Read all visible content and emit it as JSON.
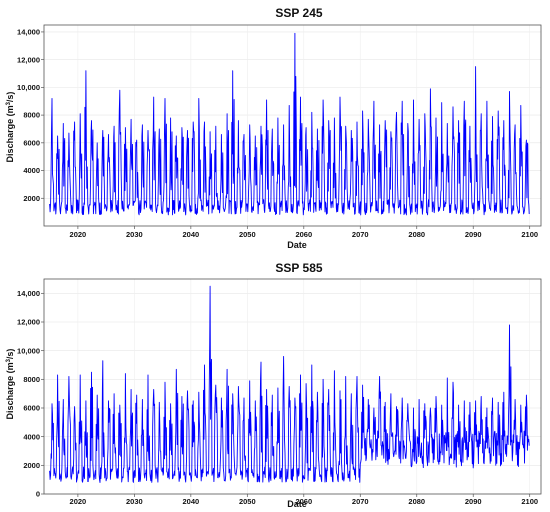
{
  "chart_data": [
    {
      "type": "line",
      "title": "SSP 245",
      "xlabel": "Date",
      "ylabel_prefix": "Discharge (m",
      "ylabel_sup": "3",
      "ylabel_suffix": "/s)",
      "xlim": [
        2014,
        2102
      ],
      "ylim": [
        0,
        14500
      ],
      "xticks": [
        2020,
        2030,
        2040,
        2050,
        2060,
        2070,
        2080,
        2090,
        2100
      ],
      "xtick_labels": [
        "2020",
        "2030",
        "2040",
        "2050",
        "2060",
        "2070",
        "2080",
        "2090",
        "2100"
      ],
      "yticks": [
        2000,
        4000,
        6000,
        8000,
        10000,
        12000,
        14000
      ],
      "ytick_labels": [
        "2000",
        "4000",
        "6000",
        "8000",
        "10,000",
        "12,000",
        "14,000"
      ],
      "grid": true,
      "line_color": "#0000ff",
      "annual_peaks": [
        {
          "x": 2015.4,
          "y": 9200
        },
        {
          "x": 2016.4,
          "y": 6500
        },
        {
          "x": 2017.4,
          "y": 7400
        },
        {
          "x": 2018.4,
          "y": 6700
        },
        {
          "x": 2019.4,
          "y": 7500
        },
        {
          "x": 2020.4,
          "y": 8100
        },
        {
          "x": 2021.4,
          "y": 11200
        },
        {
          "x": 2022.4,
          "y": 7600
        },
        {
          "x": 2023.4,
          "y": 6000
        },
        {
          "x": 2024.4,
          "y": 6900
        },
        {
          "x": 2025.4,
          "y": 6600
        },
        {
          "x": 2026.4,
          "y": 7200
        },
        {
          "x": 2027.4,
          "y": 9800
        },
        {
          "x": 2028.4,
          "y": 7100
        },
        {
          "x": 2029.4,
          "y": 7700
        },
        {
          "x": 2030.4,
          "y": 6200
        },
        {
          "x": 2031.4,
          "y": 7300
        },
        {
          "x": 2032.4,
          "y": 6900
        },
        {
          "x": 2033.4,
          "y": 9300
        },
        {
          "x": 2034.4,
          "y": 7000
        },
        {
          "x": 2035.4,
          "y": 9200
        },
        {
          "x": 2036.4,
          "y": 7800
        },
        {
          "x": 2037.4,
          "y": 6500
        },
        {
          "x": 2038.4,
          "y": 7100
        },
        {
          "x": 2039.4,
          "y": 6900
        },
        {
          "x": 2040.4,
          "y": 7500
        },
        {
          "x": 2041.4,
          "y": 9200
        },
        {
          "x": 2042.4,
          "y": 7500
        },
        {
          "x": 2043.4,
          "y": 6800
        },
        {
          "x": 2044.4,
          "y": 7200
        },
        {
          "x": 2045.4,
          "y": 6600
        },
        {
          "x": 2046.4,
          "y": 8100
        },
        {
          "x": 2047.4,
          "y": 11200
        },
        {
          "x": 2048.4,
          "y": 7600
        },
        {
          "x": 2049.4,
          "y": 6600
        },
        {
          "x": 2050.4,
          "y": 7300
        },
        {
          "x": 2051.4,
          "y": 6500
        },
        {
          "x": 2052.4,
          "y": 7200
        },
        {
          "x": 2053.4,
          "y": 9100
        },
        {
          "x": 2054.4,
          "y": 7000
        },
        {
          "x": 2055.4,
          "y": 7800
        },
        {
          "x": 2056.4,
          "y": 7300
        },
        {
          "x": 2057.4,
          "y": 8700
        },
        {
          "x": 2058.4,
          "y": 13900
        },
        {
          "x": 2059.4,
          "y": 9300
        },
        {
          "x": 2060.4,
          "y": 7100
        },
        {
          "x": 2061.4,
          "y": 8200
        },
        {
          "x": 2062.4,
          "y": 7000
        },
        {
          "x": 2063.4,
          "y": 9100
        },
        {
          "x": 2064.4,
          "y": 7600
        },
        {
          "x": 2065.4,
          "y": 7800
        },
        {
          "x": 2066.4,
          "y": 9300
        },
        {
          "x": 2067.4,
          "y": 7200
        },
        {
          "x": 2068.4,
          "y": 6900
        },
        {
          "x": 2069.4,
          "y": 7500
        },
        {
          "x": 2070.4,
          "y": 8300
        },
        {
          "x": 2071.4,
          "y": 7700
        },
        {
          "x": 2072.4,
          "y": 9000
        },
        {
          "x": 2073.4,
          "y": 7300
        },
        {
          "x": 2074.4,
          "y": 7600
        },
        {
          "x": 2075.4,
          "y": 6800
        },
        {
          "x": 2076.4,
          "y": 8200
        },
        {
          "x": 2077.4,
          "y": 9000
        },
        {
          "x": 2078.4,
          "y": 7400
        },
        {
          "x": 2079.4,
          "y": 9100
        },
        {
          "x": 2080.4,
          "y": 7700
        },
        {
          "x": 2081.4,
          "y": 8100
        },
        {
          "x": 2082.4,
          "y": 9900
        },
        {
          "x": 2083.4,
          "y": 7800
        },
        {
          "x": 2084.4,
          "y": 8900
        },
        {
          "x": 2085.4,
          "y": 7400
        },
        {
          "x": 2086.4,
          "y": 8600
        },
        {
          "x": 2087.4,
          "y": 7600
        },
        {
          "x": 2088.4,
          "y": 9000
        },
        {
          "x": 2089.4,
          "y": 7200
        },
        {
          "x": 2090.4,
          "y": 11500
        },
        {
          "x": 2091.4,
          "y": 8100
        },
        {
          "x": 2092.4,
          "y": 9000
        },
        {
          "x": 2093.4,
          "y": 7900
        },
        {
          "x": 2094.4,
          "y": 8300
        },
        {
          "x": 2095.4,
          "y": 7600
        },
        {
          "x": 2096.4,
          "y": 9700
        },
        {
          "x": 2097.4,
          "y": 7300
        },
        {
          "x": 2098.4,
          "y": 8700
        },
        {
          "x": 2099.4,
          "y": 6200
        }
      ],
      "baseflow_min": 800,
      "baseflow_typical": 1500
    },
    {
      "type": "line",
      "title": "SSP 585",
      "xlabel": "Date",
      "ylabel_prefix": "Discharge (m",
      "ylabel_sup": "3",
      "ylabel_suffix": "/s)",
      "xlim": [
        2014,
        2102
      ],
      "ylim": [
        0,
        15000
      ],
      "xticks": [
        2020,
        2030,
        2040,
        2050,
        2060,
        2070,
        2080,
        2090,
        2100
      ],
      "xtick_labels": [
        "2020",
        "2030",
        "2040",
        "2050",
        "2060",
        "2070",
        "2080",
        "2090",
        "2100"
      ],
      "yticks": [
        0,
        2000,
        4000,
        6000,
        8000,
        10000,
        12000,
        14000
      ],
      "ytick_labels": [
        "0",
        "2000",
        "4000",
        "6000",
        "8000",
        "10,000",
        "12,000",
        "14,000"
      ],
      "grid": true,
      "line_color": "#0000ff",
      "annual_peaks": [
        {
          "x": 2015.4,
          "y": 6300
        },
        {
          "x": 2016.4,
          "y": 8300
        },
        {
          "x": 2017.4,
          "y": 6600
        },
        {
          "x": 2018.4,
          "y": 8200
        },
        {
          "x": 2019.4,
          "y": 6100
        },
        {
          "x": 2020.4,
          "y": 8300
        },
        {
          "x": 2021.4,
          "y": 6500
        },
        {
          "x": 2022.4,
          "y": 8500
        },
        {
          "x": 2023.4,
          "y": 6900
        },
        {
          "x": 2024.4,
          "y": 9300
        },
        {
          "x": 2025.4,
          "y": 6500
        },
        {
          "x": 2026.4,
          "y": 7000
        },
        {
          "x": 2027.4,
          "y": 6200
        },
        {
          "x": 2028.4,
          "y": 8400
        },
        {
          "x": 2029.4,
          "y": 7300
        },
        {
          "x": 2030.4,
          "y": 6900
        },
        {
          "x": 2031.4,
          "y": 6600
        },
        {
          "x": 2032.4,
          "y": 8300
        },
        {
          "x": 2033.4,
          "y": 7300
        },
        {
          "x": 2034.4,
          "y": 6400
        },
        {
          "x": 2035.4,
          "y": 7800
        },
        {
          "x": 2036.4,
          "y": 6300
        },
        {
          "x": 2037.4,
          "y": 8700
        },
        {
          "x": 2038.4,
          "y": 6800
        },
        {
          "x": 2039.4,
          "y": 7200
        },
        {
          "x": 2040.4,
          "y": 6500
        },
        {
          "x": 2041.4,
          "y": 7100
        },
        {
          "x": 2042.4,
          "y": 9000
        },
        {
          "x": 2043.4,
          "y": 14500
        },
        {
          "x": 2044.4,
          "y": 7600
        },
        {
          "x": 2045.4,
          "y": 6700
        },
        {
          "x": 2046.4,
          "y": 8700
        },
        {
          "x": 2047.4,
          "y": 7000
        },
        {
          "x": 2048.4,
          "y": 7500
        },
        {
          "x": 2049.4,
          "y": 6700
        },
        {
          "x": 2050.4,
          "y": 7900
        },
        {
          "x": 2051.4,
          "y": 6500
        },
        {
          "x": 2052.4,
          "y": 9200
        },
        {
          "x": 2053.4,
          "y": 7300
        },
        {
          "x": 2054.4,
          "y": 6900
        },
        {
          "x": 2055.4,
          "y": 7400
        },
        {
          "x": 2056.4,
          "y": 9600
        },
        {
          "x": 2057.4,
          "y": 7500
        },
        {
          "x": 2058.4,
          "y": 6700
        },
        {
          "x": 2059.4,
          "y": 8300
        },
        {
          "x": 2060.4,
          "y": 7700
        },
        {
          "x": 2061.4,
          "y": 9000
        },
        {
          "x": 2062.4,
          "y": 7100
        },
        {
          "x": 2063.4,
          "y": 8000
        },
        {
          "x": 2064.4,
          "y": 7300
        },
        {
          "x": 2065.4,
          "y": 8600
        },
        {
          "x": 2066.4,
          "y": 7200
        },
        {
          "x": 2067.4,
          "y": 8200
        },
        {
          "x": 2068.4,
          "y": 7000
        },
        {
          "x": 2069.4,
          "y": 8200
        },
        {
          "x": 2070.4,
          "y": 7600
        },
        {
          "x": 2071.4,
          "y": 6600
        },
        {
          "x": 2072.4,
          "y": 6000
        },
        {
          "x": 2073.4,
          "y": 8200
        },
        {
          "x": 2074.4,
          "y": 6400
        },
        {
          "x": 2075.4,
          "y": 7000
        },
        {
          "x": 2076.4,
          "y": 6100
        },
        {
          "x": 2077.4,
          "y": 6700
        },
        {
          "x": 2078.4,
          "y": 6300
        },
        {
          "x": 2079.4,
          "y": 6000
        },
        {
          "x": 2080.4,
          "y": 6600
        },
        {
          "x": 2081.4,
          "y": 6300
        },
        {
          "x": 2082.4,
          "y": 6000
        },
        {
          "x": 2083.4,
          "y": 6800
        },
        {
          "x": 2084.4,
          "y": 6200
        },
        {
          "x": 2085.4,
          "y": 8100
        },
        {
          "x": 2086.4,
          "y": 7800
        },
        {
          "x": 2087.4,
          "y": 6200
        },
        {
          "x": 2088.4,
          "y": 6500
        },
        {
          "x": 2089.4,
          "y": 6400
        },
        {
          "x": 2090.4,
          "y": 6500
        },
        {
          "x": 2091.4,
          "y": 6800
        },
        {
          "x": 2092.4,
          "y": 6000
        },
        {
          "x": 2093.4,
          "y": 6700
        },
        {
          "x": 2094.4,
          "y": 6400
        },
        {
          "x": 2095.4,
          "y": 7100
        },
        {
          "x": 2096.4,
          "y": 11800
        },
        {
          "x": 2097.4,
          "y": 6600
        },
        {
          "x": 2098.4,
          "y": 6200
        },
        {
          "x": 2099.4,
          "y": 6900
        }
      ],
      "baseflow_min": 800,
      "baseflow_typical": 1500
    }
  ]
}
